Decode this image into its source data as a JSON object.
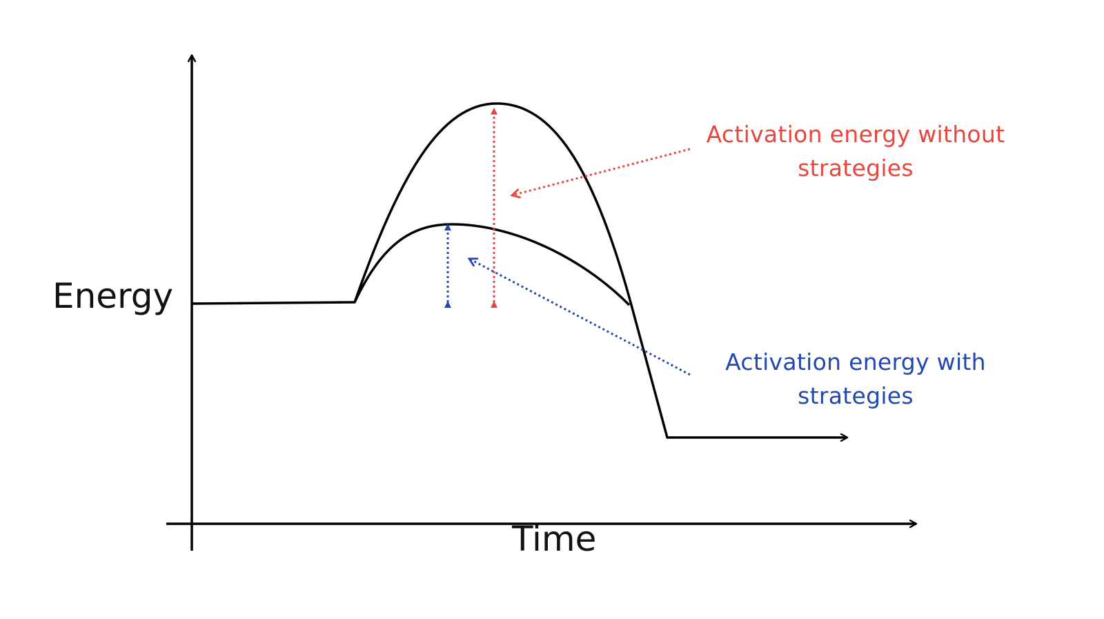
{
  "axes": {
    "y_label": "Energy",
    "x_label": "Time"
  },
  "annotations": {
    "without": {
      "line1": "Activation energy without",
      "line2": "strategies",
      "color": "#e8453c"
    },
    "with": {
      "line1": "Activation energy with",
      "line2": "strategies",
      "color": "#2147b0"
    }
  },
  "colors": {
    "curve": "#000000",
    "axes": "#000000"
  }
}
